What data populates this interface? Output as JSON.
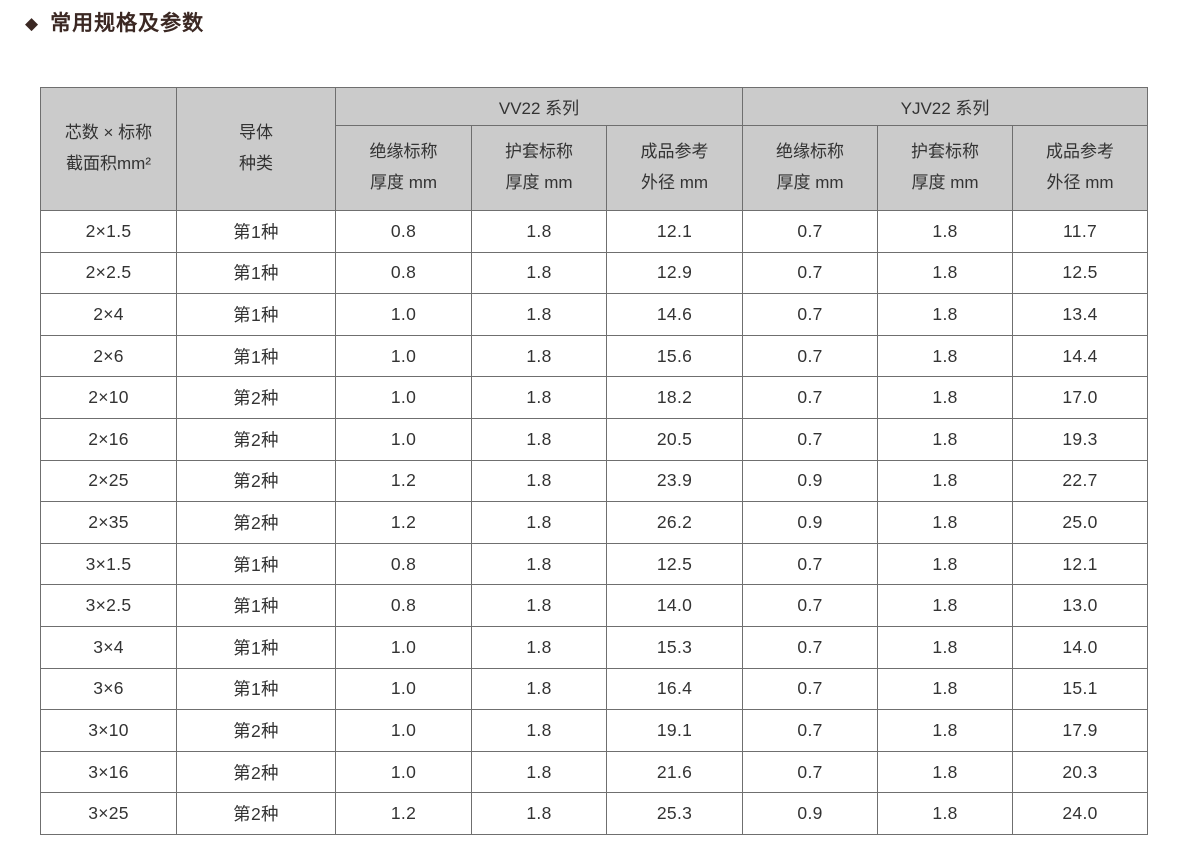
{
  "page": {
    "bullet_icon": "diamond",
    "bullet_glyph": "◆",
    "title": "常用规格及参数"
  },
  "colors": {
    "title_text": "#3b2823",
    "header_bg": "#cbcbcb",
    "border": "#6f6f6f",
    "body_text": "#333333"
  },
  "table": {
    "row_headers": [
      {
        "label": "芯数 × 标称\n截面积mm²"
      },
      {
        "label": "导体\n种类"
      }
    ],
    "group_headers": [
      {
        "label": "VV22 系列"
      },
      {
        "label": "YJV22 系列"
      }
    ],
    "sub_headers": [
      "绝缘标称\n厚度 mm",
      "护套标称\n厚度 mm",
      "成品参考\n外径 mm",
      "绝缘标称\n厚度 mm",
      "护套标称\n厚度 mm",
      "成品参考\n外径 mm"
    ],
    "rows": [
      [
        "2×1.5",
        "第1种",
        "0.8",
        "1.8",
        "12.1",
        "0.7",
        "1.8",
        "11.7"
      ],
      [
        "2×2.5",
        "第1种",
        "0.8",
        "1.8",
        "12.9",
        "0.7",
        "1.8",
        "12.5"
      ],
      [
        "2×4",
        "第1种",
        "1.0",
        "1.8",
        "14.6",
        "0.7",
        "1.8",
        "13.4"
      ],
      [
        "2×6",
        "第1种",
        "1.0",
        "1.8",
        "15.6",
        "0.7",
        "1.8",
        "14.4"
      ],
      [
        "2×10",
        "第2种",
        "1.0",
        "1.8",
        "18.2",
        "0.7",
        "1.8",
        "17.0"
      ],
      [
        "2×16",
        "第2种",
        "1.0",
        "1.8",
        "20.5",
        "0.7",
        "1.8",
        "19.3"
      ],
      [
        "2×25",
        "第2种",
        "1.2",
        "1.8",
        "23.9",
        "0.9",
        "1.8",
        "22.7"
      ],
      [
        "2×35",
        "第2种",
        "1.2",
        "1.8",
        "26.2",
        "0.9",
        "1.8",
        "25.0"
      ],
      [
        "3×1.5",
        "第1种",
        "0.8",
        "1.8",
        "12.5",
        "0.7",
        "1.8",
        "12.1"
      ],
      [
        "3×2.5",
        "第1种",
        "0.8",
        "1.8",
        "14.0",
        "0.7",
        "1.8",
        "13.0"
      ],
      [
        "3×4",
        "第1种",
        "1.0",
        "1.8",
        "15.3",
        "0.7",
        "1.8",
        "14.0"
      ],
      [
        "3×6",
        "第1种",
        "1.0",
        "1.8",
        "16.4",
        "0.7",
        "1.8",
        "15.1"
      ],
      [
        "3×10",
        "第2种",
        "1.0",
        "1.8",
        "19.1",
        "0.7",
        "1.8",
        "17.9"
      ],
      [
        "3×16",
        "第2种",
        "1.0",
        "1.8",
        "21.6",
        "0.7",
        "1.8",
        "20.3"
      ],
      [
        "3×25",
        "第2种",
        "1.2",
        "1.8",
        "25.3",
        "0.9",
        "1.8",
        "24.0"
      ]
    ]
  }
}
